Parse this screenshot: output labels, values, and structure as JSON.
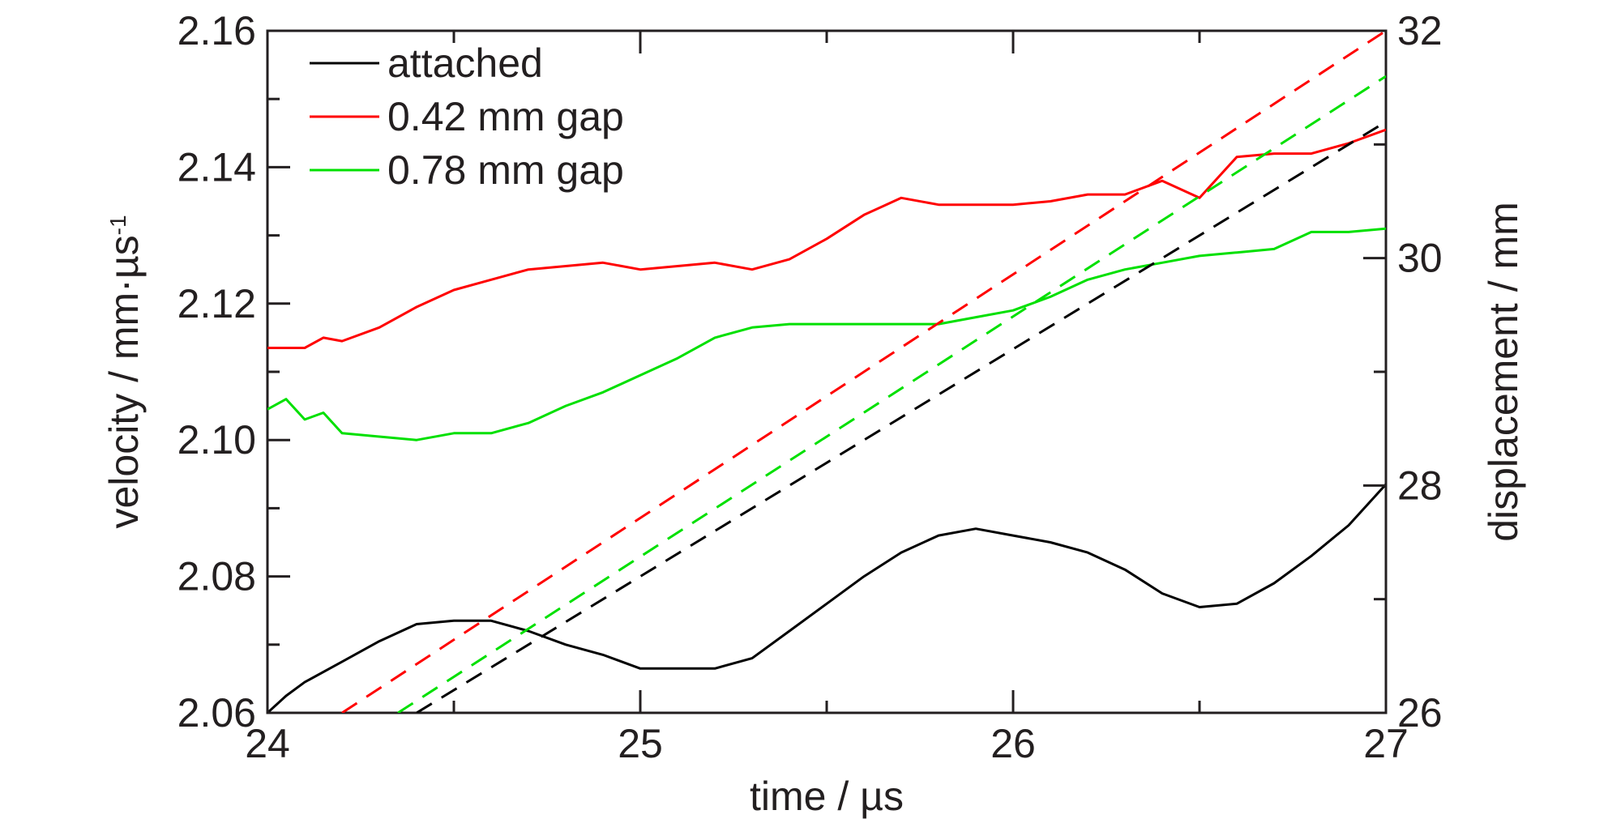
{
  "chart_data": {
    "type": "line",
    "title": "",
    "xlabel": "time / µs",
    "ylabel_left": "velocity / mm·µs",
    "ylabel_left_sup": "-1",
    "ylabel_right": "displacement / mm",
    "xlim": [
      24,
      27
    ],
    "ylim_left": [
      2.06,
      2.16
    ],
    "ylim_right": [
      26,
      32
    ],
    "x_ticks": [
      24,
      25,
      26,
      27
    ],
    "x_tick_labels": [
      "24",
      "25",
      "26",
      "27"
    ],
    "y_left_ticks": [
      2.06,
      2.08,
      2.1,
      2.12,
      2.14,
      2.16
    ],
    "y_left_tick_labels": [
      "2.06",
      "2.08",
      "2.10",
      "2.12",
      "2.14",
      "2.16"
    ],
    "y_right_ticks": [
      26,
      28,
      30,
      32
    ],
    "y_right_tick_labels": [
      "26",
      "28",
      "30",
      "32"
    ],
    "grid": false,
    "legend_position": "top-left",
    "colors": {
      "attached": "#000000",
      "gap042": "#ff0000",
      "gap078": "#00e000",
      "axis": "#231f20"
    },
    "legend": [
      {
        "label": "attached",
        "color": "#000000"
      },
      {
        "label": "0.42 mm gap",
        "color": "#ff0000"
      },
      {
        "label": "0.78 mm gap",
        "color": "#00e000"
      }
    ],
    "series": [
      {
        "name": "attached",
        "axis": "left",
        "style": "solid",
        "color": "#000000",
        "points": [
          [
            24.0,
            2.06
          ],
          [
            24.05,
            2.0625
          ],
          [
            24.1,
            2.0645
          ],
          [
            24.2,
            2.0675
          ],
          [
            24.3,
            2.0705
          ],
          [
            24.4,
            2.073
          ],
          [
            24.5,
            2.0735
          ],
          [
            24.6,
            2.0735
          ],
          [
            24.7,
            2.072
          ],
          [
            24.8,
            2.07
          ],
          [
            24.9,
            2.0685
          ],
          [
            25.0,
            2.0665
          ],
          [
            25.1,
            2.0665
          ],
          [
            25.2,
            2.0665
          ],
          [
            25.3,
            2.068
          ],
          [
            25.4,
            2.072
          ],
          [
            25.5,
            2.076
          ],
          [
            25.6,
            2.08
          ],
          [
            25.7,
            2.0835
          ],
          [
            25.8,
            2.086
          ],
          [
            25.9,
            2.087
          ],
          [
            26.0,
            2.086
          ],
          [
            26.1,
            2.085
          ],
          [
            26.2,
            2.0835
          ],
          [
            26.3,
            2.081
          ],
          [
            26.4,
            2.0775
          ],
          [
            26.5,
            2.0755
          ],
          [
            26.6,
            2.076
          ],
          [
            26.7,
            2.079
          ],
          [
            26.8,
            2.083
          ],
          [
            26.9,
            2.0875
          ],
          [
            27.0,
            2.0935
          ]
        ]
      },
      {
        "name": "0.42 mm gap",
        "axis": "left",
        "style": "solid",
        "color": "#ff0000",
        "points": [
          [
            24.0,
            2.1135
          ],
          [
            24.1,
            2.1135
          ],
          [
            24.15,
            2.115
          ],
          [
            24.2,
            2.1145
          ],
          [
            24.3,
            2.1165
          ],
          [
            24.4,
            2.1195
          ],
          [
            24.5,
            2.122
          ],
          [
            24.6,
            2.1235
          ],
          [
            24.7,
            2.125
          ],
          [
            24.8,
            2.1255
          ],
          [
            24.9,
            2.126
          ],
          [
            25.0,
            2.125
          ],
          [
            25.1,
            2.1255
          ],
          [
            25.2,
            2.126
          ],
          [
            25.3,
            2.125
          ],
          [
            25.4,
            2.1265
          ],
          [
            25.5,
            2.1295
          ],
          [
            25.6,
            2.133
          ],
          [
            25.7,
            2.1355
          ],
          [
            25.8,
            2.1345
          ],
          [
            25.9,
            2.1345
          ],
          [
            26.0,
            2.1345
          ],
          [
            26.1,
            2.135
          ],
          [
            26.2,
            2.136
          ],
          [
            26.3,
            2.136
          ],
          [
            26.4,
            2.138
          ],
          [
            26.5,
            2.1355
          ],
          [
            26.6,
            2.1415
          ],
          [
            26.7,
            2.142
          ],
          [
            26.8,
            2.142
          ],
          [
            26.9,
            2.1435
          ],
          [
            27.0,
            2.1455
          ]
        ]
      },
      {
        "name": "0.78 mm gap",
        "axis": "left",
        "style": "solid",
        "color": "#00e000",
        "points": [
          [
            24.0,
            2.1045
          ],
          [
            24.05,
            2.106
          ],
          [
            24.1,
            2.103
          ],
          [
            24.15,
            2.104
          ],
          [
            24.2,
            2.101
          ],
          [
            24.3,
            2.1005
          ],
          [
            24.4,
            2.1
          ],
          [
            24.5,
            2.101
          ],
          [
            24.6,
            2.101
          ],
          [
            24.7,
            2.1025
          ],
          [
            24.8,
            2.105
          ],
          [
            24.9,
            2.107
          ],
          [
            25.0,
            2.1095
          ],
          [
            25.1,
            2.112
          ],
          [
            25.2,
            2.115
          ],
          [
            25.3,
            2.1165
          ],
          [
            25.4,
            2.117
          ],
          [
            25.5,
            2.117
          ],
          [
            25.6,
            2.117
          ],
          [
            25.7,
            2.117
          ],
          [
            25.8,
            2.117
          ],
          [
            25.9,
            2.118
          ],
          [
            26.0,
            2.119
          ],
          [
            26.1,
            2.121
          ],
          [
            26.2,
            2.1235
          ],
          [
            26.3,
            2.125
          ],
          [
            26.4,
            2.126
          ],
          [
            26.5,
            2.127
          ],
          [
            26.6,
            2.1275
          ],
          [
            26.7,
            2.128
          ],
          [
            26.8,
            2.1305
          ],
          [
            26.9,
            2.1305
          ],
          [
            27.0,
            2.131
          ]
        ]
      },
      {
        "name": "attached",
        "axis": "right",
        "style": "dashed",
        "color": "#000000",
        "points": [
          [
            24.4,
            26.0
          ],
          [
            27.0,
            31.2
          ]
        ]
      },
      {
        "name": "0.42 mm gap",
        "axis": "right",
        "style": "dashed",
        "color": "#ff0000",
        "points": [
          [
            24.2,
            26.0
          ],
          [
            27.0,
            32.0
          ]
        ]
      },
      {
        "name": "0.78 mm gap",
        "axis": "right",
        "style": "dashed",
        "color": "#00e000",
        "points": [
          [
            24.35,
            26.0
          ],
          [
            27.0,
            31.6
          ]
        ]
      }
    ]
  }
}
